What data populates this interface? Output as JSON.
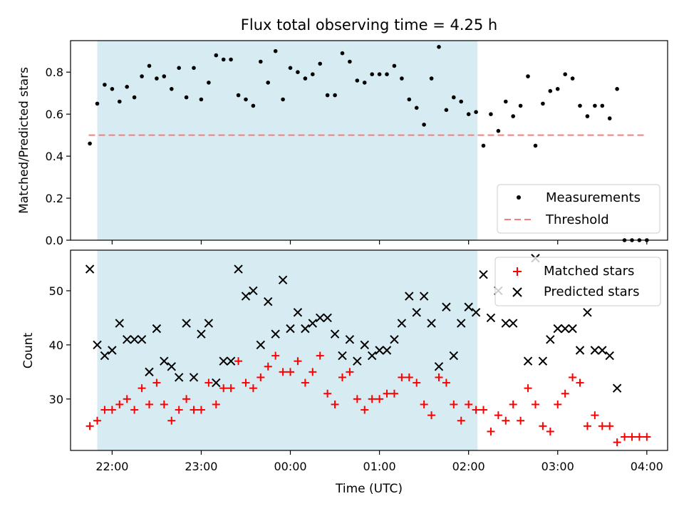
{
  "chart_data": [
    {
      "type": "scatter",
      "title": "Flux total observing time = 4.25 h",
      "ylabel": "Matched/Predicted stars",
      "xlabel": "",
      "ylim": [
        0,
        0.95
      ],
      "xlim": [
        "21:32",
        "04:14"
      ],
      "yticks": [
        "0.0",
        "0.2",
        "0.4",
        "0.6",
        "0.8"
      ],
      "shaded_span": [
        "21:50",
        "02:06"
      ],
      "threshold": 0.5,
      "legend": {
        "placement": "lower-right",
        "measurements": "Measurements",
        "threshold": "Threshold"
      },
      "x": [
        "21:45",
        "21:50",
        "21:55",
        "22:00",
        "22:05",
        "22:10",
        "22:15",
        "22:20",
        "22:25",
        "22:30",
        "22:35",
        "22:40",
        "22:45",
        "22:50",
        "22:55",
        "23:00",
        "23:05",
        "23:10",
        "23:15",
        "23:20",
        "23:25",
        "23:30",
        "23:35",
        "23:40",
        "23:45",
        "23:50",
        "23:55",
        "00:00",
        "00:05",
        "00:10",
        "00:15",
        "00:20",
        "00:25",
        "00:30",
        "00:35",
        "00:40",
        "00:45",
        "00:50",
        "00:55",
        "01:00",
        "01:05",
        "01:10",
        "01:15",
        "01:20",
        "01:25",
        "01:30",
        "01:35",
        "01:40",
        "01:45",
        "01:50",
        "01:55",
        "02:00",
        "02:05",
        "02:10",
        "02:15",
        "02:20",
        "02:25",
        "02:30",
        "02:35",
        "02:40",
        "02:45",
        "02:50",
        "02:55",
        "03:00",
        "03:05",
        "03:10",
        "03:15",
        "03:20",
        "03:25",
        "03:30",
        "03:35",
        "03:40",
        "03:45",
        "03:50",
        "03:55",
        "04:00"
      ],
      "values": [
        0.46,
        0.65,
        0.74,
        0.72,
        0.66,
        0.73,
        0.68,
        0.78,
        0.83,
        0.77,
        0.78,
        0.72,
        0.82,
        0.68,
        0.82,
        0.67,
        0.75,
        0.88,
        0.86,
        0.86,
        0.69,
        0.67,
        0.64,
        0.85,
        0.75,
        0.9,
        0.67,
        0.82,
        0.8,
        0.77,
        0.79,
        0.84,
        0.69,
        0.69,
        0.89,
        0.85,
        0.76,
        0.75,
        0.79,
        0.79,
        0.79,
        0.83,
        0.77,
        0.67,
        0.63,
        0.55,
        0.77,
        0.92,
        0.62,
        0.68,
        0.66,
        0.6,
        0.61,
        0.45,
        0.6,
        0.52,
        0.66,
        0.59,
        0.64,
        0.78,
        0.45,
        0.65,
        0.71,
        0.72,
        0.79,
        0.77,
        0.64,
        0.59,
        0.64,
        0.64,
        0.58,
        0.72,
        0,
        0,
        0,
        0
      ]
    },
    {
      "type": "scatter",
      "xlabel": "Time (UTC)",
      "ylabel": "Count",
      "ylim": [
        20.5,
        57.5
      ],
      "xticks": [
        "22:00",
        "23:00",
        "00:00",
        "01:00",
        "02:00",
        "03:00",
        "04:00"
      ],
      "yticks": [
        "30",
        "40",
        "50"
      ],
      "shaded_span": [
        "21:50",
        "02:06"
      ],
      "legend": {
        "placement": "upper-right"
      },
      "x": [
        "21:45",
        "21:50",
        "21:55",
        "22:00",
        "22:05",
        "22:10",
        "22:15",
        "22:20",
        "22:25",
        "22:30",
        "22:35",
        "22:40",
        "22:45",
        "22:50",
        "22:55",
        "23:00",
        "23:05",
        "23:10",
        "23:15",
        "23:20",
        "23:25",
        "23:30",
        "23:35",
        "23:40",
        "23:45",
        "23:50",
        "23:55",
        "00:00",
        "00:05",
        "00:10",
        "00:15",
        "00:20",
        "00:25",
        "00:30",
        "00:35",
        "00:40",
        "00:45",
        "00:50",
        "00:55",
        "01:00",
        "01:05",
        "01:10",
        "01:15",
        "01:20",
        "01:25",
        "01:30",
        "01:35",
        "01:40",
        "01:45",
        "01:50",
        "01:55",
        "02:00",
        "02:05",
        "02:10",
        "02:15",
        "02:20",
        "02:25",
        "02:30",
        "02:35",
        "02:40",
        "02:45",
        "02:50",
        "02:55",
        "03:00",
        "03:05",
        "03:10",
        "03:15",
        "03:20",
        "03:25",
        "03:30",
        "03:35",
        "03:40",
        "03:45",
        "03:50",
        "03:55",
        "04:00"
      ],
      "series": [
        {
          "name": "Matched stars",
          "color": "#ff0000",
          "marker": "plus",
          "values": [
            25,
            26,
            28,
            28,
            29,
            30,
            28,
            32,
            29,
            33,
            29,
            26,
            28,
            30,
            28,
            28,
            33,
            29,
            32,
            32,
            37,
            33,
            32,
            34,
            36,
            38,
            35,
            35,
            37,
            33,
            35,
            38,
            31,
            29,
            34,
            35,
            30,
            28,
            30,
            30,
            31,
            31,
            34,
            34,
            33,
            29,
            27,
            34,
            33,
            29,
            26,
            29,
            28,
            28,
            24,
            27,
            26,
            29,
            26,
            32,
            29,
            25,
            24,
            29,
            31,
            34,
            33,
            25,
            27,
            25,
            25,
            22,
            23,
            23,
            23,
            23
          ]
        },
        {
          "name": "Predicted stars",
          "color": "#000000",
          "marker": "x",
          "values": [
            54,
            40,
            38,
            39,
            44,
            41,
            41,
            41,
            35,
            43,
            37,
            36,
            34,
            44,
            34,
            42,
            44,
            33,
            37,
            37,
            54,
            49,
            50,
            40,
            48,
            42,
            52,
            43,
            46,
            43,
            44,
            45,
            45,
            42,
            38,
            41,
            37,
            40,
            38,
            39,
            39,
            41,
            44,
            49,
            46,
            49,
            44,
            36,
            47,
            38,
            44,
            47,
            46,
            53,
            45,
            50,
            44,
            44,
            null,
            37,
            56,
            37,
            41,
            43,
            43,
            43,
            39,
            46,
            39,
            39,
            38,
            32,
            null,
            null,
            null,
            null
          ]
        }
      ]
    }
  ]
}
